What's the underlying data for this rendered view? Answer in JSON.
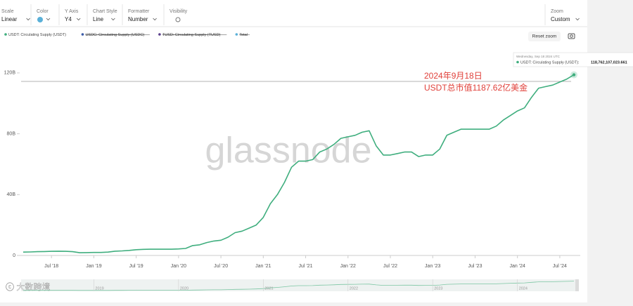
{
  "toolbar": [
    {
      "label": "Scale",
      "value": "Linear"
    },
    {
      "label": "Color"
    },
    {
      "label": "Y Axis",
      "value": "Y4"
    },
    {
      "label": "Chart Style",
      "value": "Line"
    },
    {
      "label": "Formatter",
      "value": "Number"
    },
    {
      "label": "Visibility"
    },
    {
      "label": "Zoom",
      "value": "Custom"
    }
  ],
  "reset_zoom": "Reset zoom",
  "watermark": "glassnode",
  "source_watermark": "大数跨境",
  "chart_data": {
    "type": "line",
    "x": [
      "2018-03",
      "2018-04",
      "2018-05",
      "2018-06",
      "2018-07",
      "2018-08",
      "2018-09",
      "2018-10",
      "2018-11",
      "2018-12",
      "2019-01",
      "2019-02",
      "2019-03",
      "2019-04",
      "2019-05",
      "2019-06",
      "2019-07",
      "2019-08",
      "2019-09",
      "2019-10",
      "2019-11",
      "2019-12",
      "2020-01",
      "2020-02",
      "2020-03",
      "2020-04",
      "2020-05",
      "2020-06",
      "2020-07",
      "2020-08",
      "2020-09",
      "2020-10",
      "2020-11",
      "2020-12",
      "2021-01",
      "2021-02",
      "2021-03",
      "2021-04",
      "2021-05",
      "2021-06",
      "2021-07",
      "2021-08",
      "2021-09",
      "2021-10",
      "2021-11",
      "2021-12",
      "2022-01",
      "2022-02",
      "2022-03",
      "2022-04",
      "2022-05",
      "2022-06",
      "2022-07",
      "2022-08",
      "2022-09",
      "2022-10",
      "2022-11",
      "2022-12",
      "2023-01",
      "2023-02",
      "2023-03",
      "2023-04",
      "2023-05",
      "2023-06",
      "2023-07",
      "2023-08",
      "2023-09",
      "2023-10",
      "2023-11",
      "2023-12",
      "2024-01",
      "2024-02",
      "2024-03",
      "2024-04",
      "2024-05",
      "2024-06",
      "2024-07",
      "2024-08",
      "2024-09"
    ],
    "series": [
      {
        "name": "USDT: Circulating Supply (USDT)",
        "color": "#3fae7e",
        "values": [
          2.2,
          2.3,
          2.5,
          2.6,
          2.7,
          2.8,
          2.7,
          2.5,
          1.8,
          1.9,
          2.0,
          2.0,
          2.2,
          2.8,
          3.0,
          3.3,
          3.8,
          4.0,
          4.1,
          4.1,
          4.1,
          4.1,
          4.3,
          4.6,
          6.5,
          7,
          8.5,
          9.5,
          10,
          12,
          15,
          16,
          18,
          20,
          25,
          34,
          40,
          48,
          58,
          62,
          62,
          63,
          68,
          70,
          73,
          77,
          78,
          79,
          81,
          82,
          72,
          66,
          66,
          67,
          68,
          68,
          65,
          66,
          66,
          70,
          79,
          81,
          83,
          83,
          83,
          83,
          83,
          85,
          89,
          92,
          95,
          97,
          104,
          110,
          111,
          112,
          114,
          116,
          118.762107023661
        ]
      }
    ],
    "hidden_series": [
      {
        "name": "USDC: Circulating Supply (USDC)",
        "color": "#3b5ba8"
      },
      {
        "name": "TUSD: Circulating Supply (TUSD)",
        "color": "#5a3f8c"
      },
      {
        "name": "Total",
        "color": "#5ab0d8"
      }
    ],
    "xlim": [
      "2018-02",
      "2024-09"
    ],
    "xticks": [
      {
        "value": "2018-07",
        "label": "Jul '18"
      },
      {
        "value": "2019-01",
        "label": "Jan '19"
      },
      {
        "value": "2019-07",
        "label": "Jul '19"
      },
      {
        "value": "2020-01",
        "label": "Jan '20"
      },
      {
        "value": "2020-07",
        "label": "Jul '20"
      },
      {
        "value": "2021-01",
        "label": "Jan '21"
      },
      {
        "value": "2021-07",
        "label": "Jul '21"
      },
      {
        "value": "2022-01",
        "label": "Jan '22"
      },
      {
        "value": "2022-07",
        "label": "Jul '22"
      },
      {
        "value": "2023-01",
        "label": "Jan '23"
      },
      {
        "value": "2023-07",
        "label": "Jul '23"
      },
      {
        "value": "2024-01",
        "label": "Jan '24"
      },
      {
        "value": "2024-07",
        "label": "Jul '24"
      }
    ],
    "ylim": [
      0,
      133
    ],
    "yticks": [
      0,
      {
        "value": 40,
        "label": "40B"
      },
      {
        "value": 80,
        "label": "80B"
      },
      {
        "value": 120,
        "label": "120B"
      }
    ],
    "navigator_ticks": [
      {
        "value": "2019-01",
        "label": "2019"
      },
      {
        "value": "2020-01",
        "label": "2020"
      },
      {
        "value": "2021-01",
        "label": "2021"
      },
      {
        "value": "2022-01",
        "label": "2022"
      },
      {
        "value": "2023-01",
        "label": "2023"
      },
      {
        "value": "2024-01",
        "label": "2024"
      }
    ],
    "tooltip": {
      "date": "Wednesday, Sep 18 2024 UTC",
      "label": "USDT: Circulating Supply (USDT):",
      "value": "118,762,107,023.661"
    },
    "annotations": [
      "2024年9月18日",
      "USDT总市值1187.62亿美金"
    ]
  }
}
